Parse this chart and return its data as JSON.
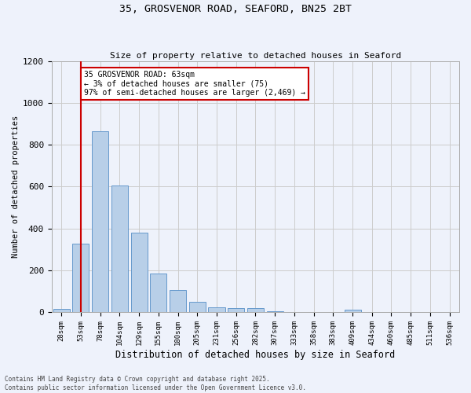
{
  "title1": "35, GROSVENOR ROAD, SEAFORD, BN25 2BT",
  "title2": "Size of property relative to detached houses in Seaford",
  "xlabel": "Distribution of detached houses by size in Seaford",
  "ylabel": "Number of detached properties",
  "categories": [
    "28sqm",
    "53sqm",
    "78sqm",
    "104sqm",
    "129sqm",
    "155sqm",
    "180sqm",
    "205sqm",
    "231sqm",
    "256sqm",
    "282sqm",
    "307sqm",
    "333sqm",
    "358sqm",
    "383sqm",
    "409sqm",
    "434sqm",
    "460sqm",
    "485sqm",
    "511sqm",
    "536sqm"
  ],
  "values": [
    15,
    325,
    865,
    605,
    380,
    185,
    105,
    47,
    22,
    18,
    20,
    5,
    0,
    0,
    0,
    12,
    0,
    0,
    0,
    0,
    0
  ],
  "bar_color": "#b8cfe8",
  "bar_edge_color": "#6699cc",
  "grid_color": "#cccccc",
  "bg_color": "#eef2fb",
  "annotation_box_color": "#ffffff",
  "annotation_border_color": "#cc0000",
  "vline_color": "#cc0000",
  "marker_label_line1": "35 GROSVENOR ROAD: 63sqm",
  "marker_label_line2": "← 3% of detached houses are smaller (75)",
  "marker_label_line3": "97% of semi-detached houses are larger (2,469) →",
  "ylim": [
    0,
    1200
  ],
  "yticks": [
    0,
    200,
    400,
    600,
    800,
    1000,
    1200
  ],
  "footer1": "Contains HM Land Registry data © Crown copyright and database right 2025.",
  "footer2": "Contains public sector information licensed under the Open Government Licence v3.0.",
  "vline_x_index": 1.0
}
